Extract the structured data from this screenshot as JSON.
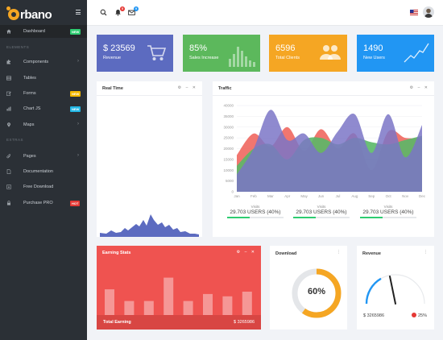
{
  "brand": {
    "text": "rbano"
  },
  "sidebar": {
    "section1": "ELEMENTS",
    "section2": "EXTRAS",
    "items": [
      {
        "label": "Dashboard",
        "badge": "NEW",
        "badge_color": "#2ecc71",
        "icon": "home-icon"
      },
      {
        "label": "Components",
        "chevron": "›",
        "icon": "puzzle-icon"
      },
      {
        "label": "Tables",
        "icon": "table-icon"
      },
      {
        "label": "Forms",
        "badge": "NEW",
        "badge_color": "#f5b800",
        "icon": "edit-icon"
      },
      {
        "label": "Chart JS",
        "badge": "NEW",
        "badge_color": "#23b7e5",
        "icon": "chart-icon"
      },
      {
        "label": "Maps",
        "chevron": "›",
        "icon": "map-marker-icon"
      },
      {
        "label": "Pages",
        "chevron": "›",
        "icon": "paperclip-icon"
      },
      {
        "label": "Documentation",
        "icon": "document-icon"
      },
      {
        "label": "Free Download",
        "icon": "download-icon"
      },
      {
        "label": "Purchase PRO",
        "badge": "HOT",
        "badge_color": "#e53935",
        "icon": "lock-icon"
      }
    ]
  },
  "topbar": {
    "bell_count": "5",
    "mail_count": "9"
  },
  "stats": [
    {
      "value": "$ 23569",
      "label": "Revenue",
      "color": "#5c6bc0",
      "icon": "cart-icon"
    },
    {
      "value": "85%",
      "label": "Sales Increase",
      "color": "#5cb85c",
      "icon": "bar-chart-icon"
    },
    {
      "value": "6596",
      "label": "Total Clients",
      "color": "#f5a623",
      "icon": "users-icon"
    },
    {
      "value": "1490",
      "label": "New Users",
      "color": "#2196f3",
      "icon": "trend-line-icon"
    }
  ],
  "realtime": {
    "title": "Real Time",
    "tools": "⚙ ‒ ✕"
  },
  "traffic": {
    "title": "Traffic",
    "tools": "⚙ ‒ ✕",
    "legend": [
      {
        "title": "Visits",
        "value": "29.703 USERS (40%)"
      },
      {
        "title": "Visits",
        "value": "29.703 USERS (40%)"
      },
      {
        "title": "Visits",
        "value": "29.703 USERS (40%)"
      }
    ]
  },
  "chart_data": {
    "type": "area",
    "categories": [
      "Jan",
      "Feb",
      "Mar",
      "Apr",
      "May",
      "Jun",
      "Jul",
      "Aug",
      "Sep",
      "Oct",
      "Nov",
      "Dec"
    ],
    "yticks": [
      "0",
      "5000",
      "10000",
      "15000",
      "20000",
      "25000",
      "30000",
      "35000",
      "40000"
    ],
    "ylim": [
      0,
      40000
    ],
    "series": [
      {
        "color": "#f0675f",
        "values": [
          17000,
          27000,
          21000,
          30000,
          19000,
          29000,
          20000,
          27000,
          10000,
          28000,
          25000,
          25000
        ]
      },
      {
        "color": "#5ab867",
        "values": [
          12000,
          20000,
          22000,
          15000,
          24000,
          25000,
          22000,
          25000,
          23000,
          22000,
          24000,
          26000
        ]
      },
      {
        "color": "#7b76c7",
        "values": [
          8000,
          20000,
          38000,
          24000,
          27000,
          18000,
          28000,
          36000,
          18000,
          36000,
          16000,
          31000
        ]
      }
    ]
  },
  "earning": {
    "title": "Earning Stats",
    "tools": "⚙ ‒ ✕",
    "footer_label": "Total Earning",
    "footer_value": "$ 3265986",
    "bars": [
      0.55,
      0.3,
      0.3,
      0.8,
      0.3,
      0.45,
      0.4,
      0.5
    ]
  },
  "download": {
    "title": "Download",
    "value": "60%",
    "progress": 0.6,
    "tools": "⋮"
  },
  "revenue": {
    "title": "Revenue",
    "amount": "$ 3265986",
    "change": "25%",
    "tools": "⋮"
  }
}
